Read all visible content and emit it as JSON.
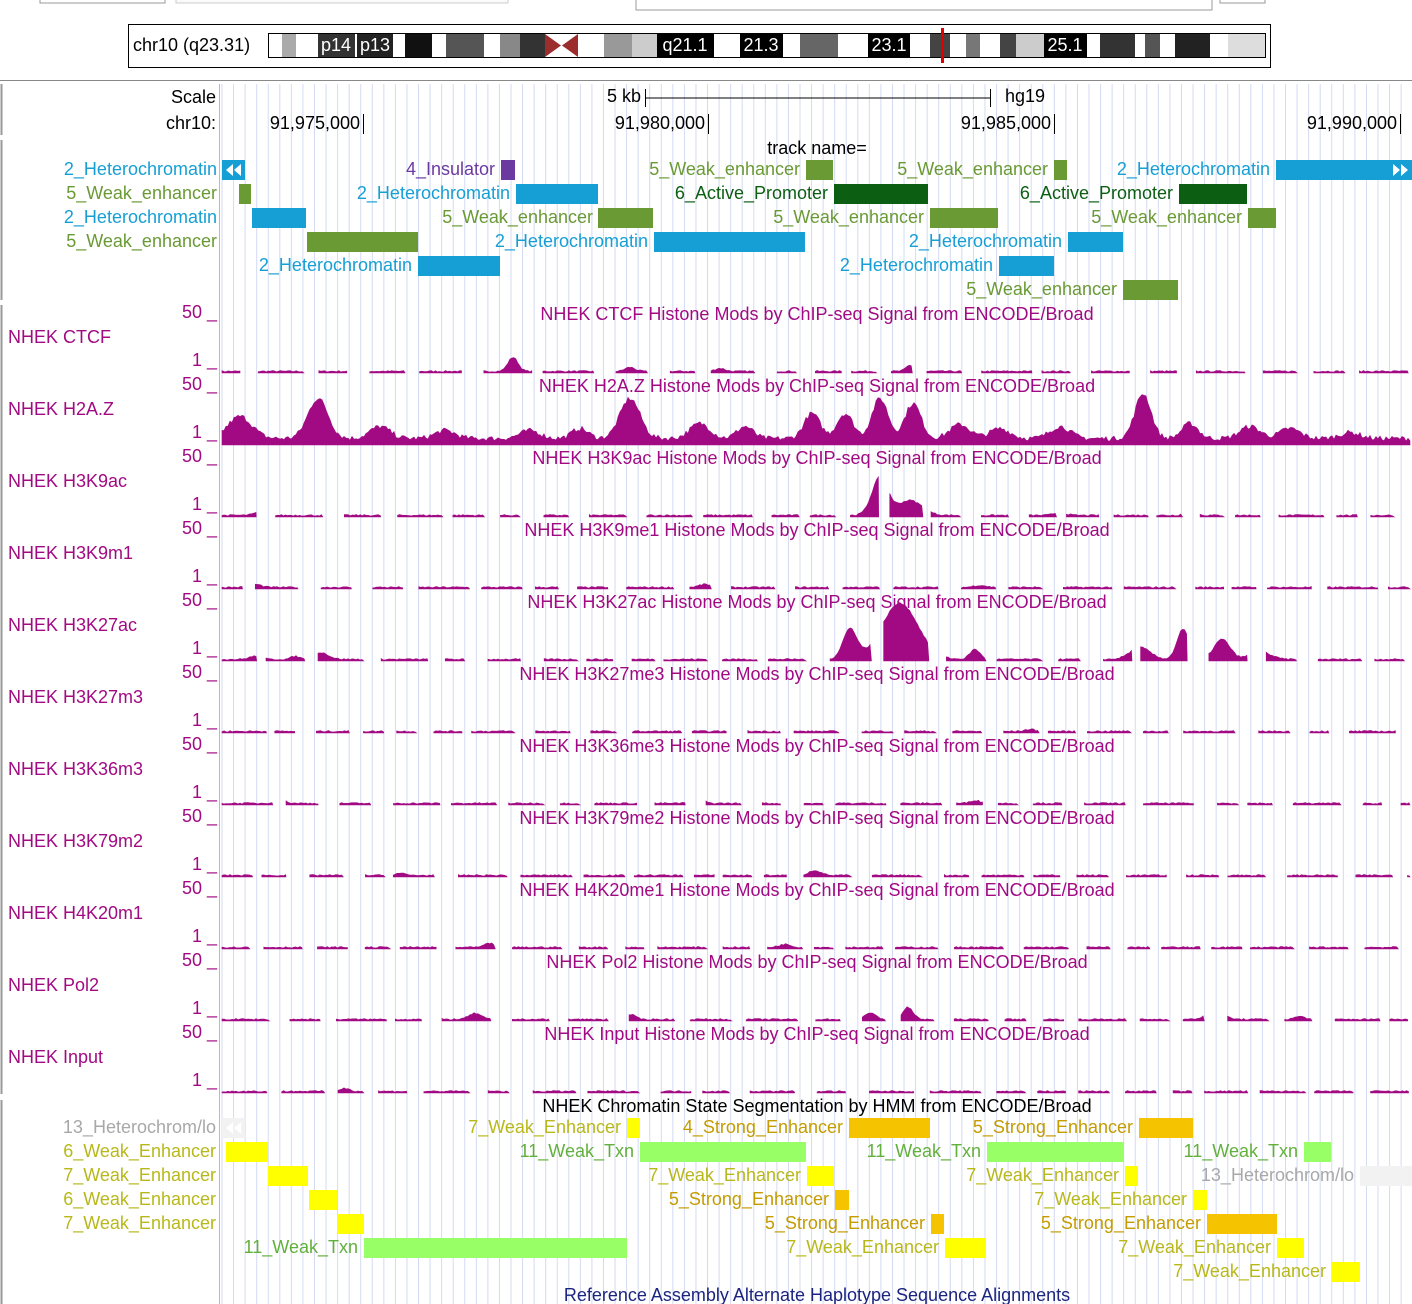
{
  "ideogram": {
    "label": "chr10 (q23.31)",
    "bands": [
      "p14",
      "p13",
      "q21.1",
      "21.3",
      "23.1",
      "25.1"
    ]
  },
  "ruler": {
    "scale_label": "Scale",
    "span": "5 kb",
    "assembly": "hg19",
    "chrom": "chr10:",
    "positions": [
      "91,975,000",
      "91,980,000",
      "91,985,000",
      "91,990,000"
    ]
  },
  "segmentation_track": {
    "header": "track name=",
    "items": [
      {
        "label": "2_Heterochromatin",
        "color": "#169fd4"
      },
      {
        "label": "4_Insulator",
        "color": "#6b3aa0"
      },
      {
        "label": "5_Weak_enhancer",
        "color": "#6a9a34"
      },
      {
        "label": "5_Weak_enhancer",
        "color": "#6a9a34"
      },
      {
        "label": "2_Heterochromatin",
        "color": "#169fd4"
      },
      {
        "label": "5_Weak_enhancer",
        "color": "#6a9a34"
      },
      {
        "label": "2_Heterochromatin",
        "color": "#169fd4"
      },
      {
        "label": "6_Active_Promoter",
        "color": "#0b5e12"
      },
      {
        "label": "6_Active_Promoter",
        "color": "#0b5e12"
      },
      {
        "label": "2_Heterochromatin",
        "color": "#169fd4"
      },
      {
        "label": "5_Weak_enhancer",
        "color": "#6a9a34"
      },
      {
        "label": "5_Weak_enhancer",
        "color": "#6a9a34"
      },
      {
        "label": "5_Weak_enhancer",
        "color": "#6a9a34"
      },
      {
        "label": "5_Weak_enhancer",
        "color": "#6a9a34"
      },
      {
        "label": "2_Heterochromatin",
        "color": "#169fd4"
      },
      {
        "label": "2_Heterochromatin",
        "color": "#169fd4"
      },
      {
        "label": "2_Heterochromatin",
        "color": "#169fd4"
      },
      {
        "label": "2_Heterochromatin",
        "color": "#169fd4"
      },
      {
        "label": "5_Weak_enhancer",
        "color": "#6a9a34"
      }
    ]
  },
  "signal_color": "#a10a83",
  "signal_tracks": [
    {
      "name": "NHEK CTCF",
      "title": "NHEK CTCF Histone Mods by ChIP-seq Signal from ENCODE/Broad",
      "max": "50 _",
      "min": "1 _"
    },
    {
      "name": "NHEK H2A.Z",
      "title": "NHEK H2A.Z Histone Mods by ChIP-seq Signal from ENCODE/Broad",
      "max": "50 _",
      "min": "1 _"
    },
    {
      "name": "NHEK H3K9ac",
      "title": "NHEK H3K9ac Histone Mods by ChIP-seq Signal from ENCODE/Broad",
      "max": "50 _",
      "min": "1 _"
    },
    {
      "name": "NHEK H3K9m1",
      "title": "NHEK H3K9me1 Histone Mods by ChIP-seq Signal from ENCODE/Broad",
      "max": "50 _",
      "min": "1 _"
    },
    {
      "name": "NHEK H3K27ac",
      "title": "NHEK H3K27ac Histone Mods by ChIP-seq Signal from ENCODE/Broad",
      "max": "50 _",
      "min": "1 _"
    },
    {
      "name": "NHEK H3K27m3",
      "title": "NHEK H3K27me3 Histone Mods by ChIP-seq Signal from ENCODE/Broad",
      "max": "50 _",
      "min": "1 _"
    },
    {
      "name": "NHEK H3K36m3",
      "title": "NHEK H3K36me3 Histone Mods by ChIP-seq Signal from ENCODE/Broad",
      "max": "50 _",
      "min": "1 _"
    },
    {
      "name": "NHEK H3K79m2",
      "title": "NHEK H3K79me2 Histone Mods by ChIP-seq Signal from ENCODE/Broad",
      "max": "50 _",
      "min": "1 _"
    },
    {
      "name": "NHEK H4K20m1",
      "title": "NHEK H4K20me1 Histone Mods by ChIP-seq Signal from ENCODE/Broad",
      "max": "50 _",
      "min": "1 _"
    },
    {
      "name": "NHEK Pol2",
      "title": "NHEK Pol2 Histone Mods by ChIP-seq Signal from ENCODE/Broad",
      "max": "50 _",
      "min": "1 _"
    },
    {
      "name": "NHEK Input",
      "title": "NHEK Input Histone Mods by ChIP-seq Signal from ENCODE/Broad",
      "max": "50 _",
      "min": "1 _"
    }
  ],
  "chromatin_track": {
    "title": "NHEK Chromatin State Segmentation by HMM from ENCODE/Broad",
    "items": [
      {
        "label": "13_Heterochrom/lo",
        "color": "#f2f2f2",
        "label_color": "#a8a8a8"
      },
      {
        "label": "7_Weak_Enhancer",
        "color": "#ffff00",
        "label_color": "#b8b81a"
      },
      {
        "label": "4_Strong_Enhancer",
        "color": "#f5c300",
        "label_color": "#c49c00"
      },
      {
        "label": "5_Strong_Enhancer",
        "color": "#f5c300",
        "label_color": "#c49c00"
      },
      {
        "label": "6_Weak_Enhancer",
        "color": "#ffff00",
        "label_color": "#b8b81a"
      },
      {
        "label": "11_Weak_Txn",
        "color": "#99ff66",
        "label_color": "#62b03c"
      },
      {
        "label": "11_Weak_Txn",
        "color": "#99ff66",
        "label_color": "#62b03c"
      },
      {
        "label": "11_Weak_Txn",
        "color": "#99ff66",
        "label_color": "#62b03c"
      },
      {
        "label": "7_Weak_Enhancer",
        "color": "#ffff00",
        "label_color": "#b8b81a"
      },
      {
        "label": "7_Weak_Enhancer",
        "color": "#ffff00",
        "label_color": "#b8b81a"
      },
      {
        "label": "7_Weak_Enhancer",
        "color": "#ffff00",
        "label_color": "#b8b81a"
      },
      {
        "label": "13_Heterochrom/lo",
        "color": "#f2f2f2",
        "label_color": "#a8a8a8"
      },
      {
        "label": "6_Weak_Enhancer",
        "color": "#ffff00",
        "label_color": "#b8b81a"
      },
      {
        "label": "5_Strong_Enhancer",
        "color": "#f5c300",
        "label_color": "#c49c00"
      },
      {
        "label": "7_Weak_Enhancer",
        "color": "#ffff00",
        "label_color": "#b8b81a"
      },
      {
        "label": "7_Weak_Enhancer",
        "color": "#ffff00",
        "label_color": "#b8b81a"
      },
      {
        "label": "5_Strong_Enhancer",
        "color": "#f5c300",
        "label_color": "#c49c00"
      },
      {
        "label": "5_Strong_Enhancer",
        "color": "#f5c300",
        "label_color": "#c49c00"
      },
      {
        "label": "11_Weak_Txn",
        "color": "#99ff66",
        "label_color": "#62b03c"
      },
      {
        "label": "7_Weak_Enhancer",
        "color": "#ffff00",
        "label_color": "#b8b81a"
      },
      {
        "label": "7_Weak_Enhancer",
        "color": "#ffff00",
        "label_color": "#b8b81a"
      },
      {
        "label": "7_Weak_Enhancer",
        "color": "#ffff00",
        "label_color": "#b8b81a"
      }
    ]
  },
  "alt_haplotype_track": {
    "title": "Reference Assembly Alternate Haplotype Sequence Alignments"
  }
}
